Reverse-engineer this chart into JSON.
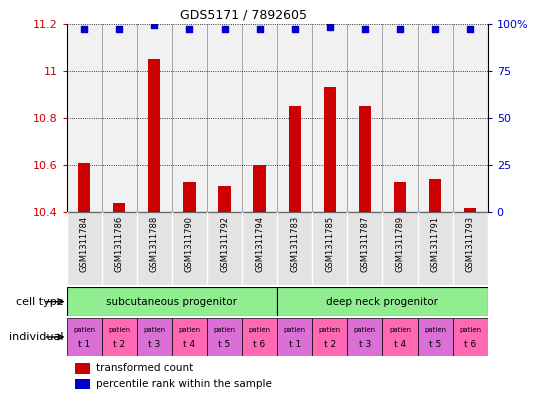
{
  "title": "GDS5171 / 7892605",
  "samples": [
    "GSM1311784",
    "GSM1311786",
    "GSM1311788",
    "GSM1311790",
    "GSM1311792",
    "GSM1311794",
    "GSM1311783",
    "GSM1311785",
    "GSM1311787",
    "GSM1311789",
    "GSM1311791",
    "GSM1311793"
  ],
  "red_values": [
    10.61,
    10.44,
    11.05,
    10.53,
    10.51,
    10.6,
    10.85,
    10.93,
    10.85,
    10.53,
    10.54,
    10.42
  ],
  "blue_values": [
    97,
    97,
    99,
    97,
    97,
    97,
    97,
    98,
    97,
    97,
    97,
    97
  ],
  "ylim_left": [
    10.4,
    11.2
  ],
  "ylim_right": [
    0,
    100
  ],
  "yticks_left": [
    10.4,
    10.6,
    10.8,
    11.0,
    11.2
  ],
  "yticks_right": [
    0,
    25,
    50,
    75,
    100
  ],
  "ytick_labels_left": [
    "10.4",
    "10.6",
    "10.8",
    "11",
    "11.2"
  ],
  "ytick_labels_right": [
    "0",
    "25",
    "50",
    "75",
    "100%"
  ],
  "cell_type_labels": [
    "subcutaneous progenitor",
    "deep neck progenitor"
  ],
  "cell_type_spans": [
    6,
    6
  ],
  "cell_type_color": "#90EE90",
  "individual_labels": [
    "t 1",
    "t 2",
    "t 3",
    "t 4",
    "t 5",
    "t 6",
    "t 1",
    "t 2",
    "t 3",
    "t 4",
    "t 5",
    "t 6"
  ],
  "individual_top_labels": [
    "patien",
    "patien",
    "patien",
    "patien",
    "patien",
    "patien",
    "patien",
    "patien",
    "patien",
    "patien",
    "patien",
    "patien"
  ],
  "individual_colors": [
    "#DA70D6",
    "#FF69B4",
    "#DA70D6",
    "#FF69B4",
    "#DA70D6",
    "#FF69B4",
    "#DA70D6",
    "#FF69B4",
    "#DA70D6",
    "#FF69B4",
    "#DA70D6",
    "#FF69B4"
  ],
  "bar_color": "#CC0000",
  "dot_color": "#0000CC",
  "grid_color": "#000000",
  "tick_color_left": "#CC0000",
  "tick_color_right": "#0000CC",
  "background_color": "#FFFFFF",
  "legend_red": "transformed count",
  "legend_blue": "percentile rank within the sample",
  "sample_bg_color": "#C8C8C8"
}
